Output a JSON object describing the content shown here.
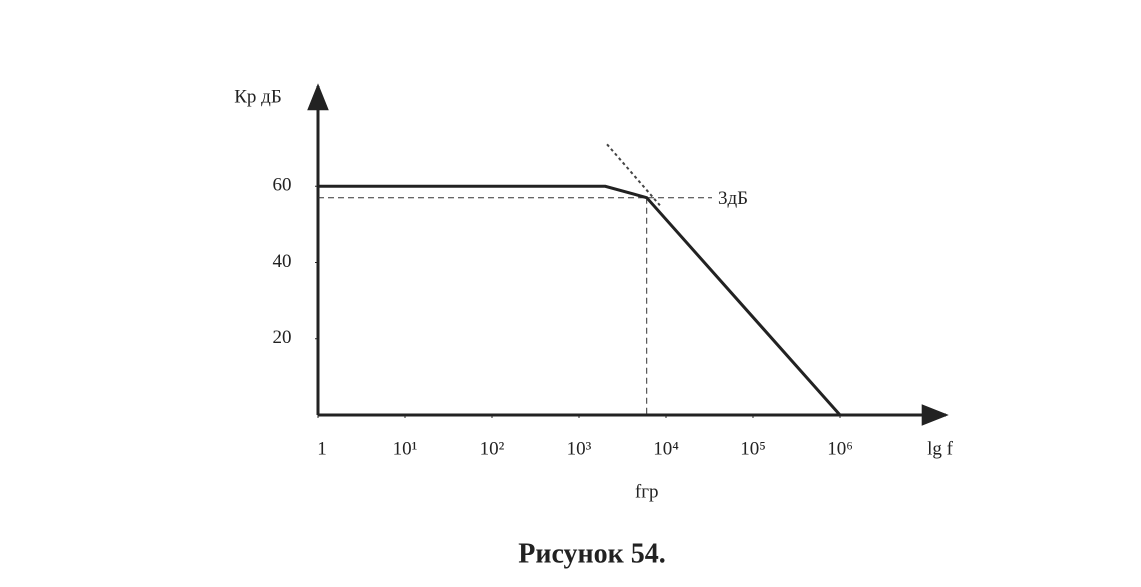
{
  "chart_data": {
    "type": "line",
    "caption": "Рисунок 54.",
    "y_label": "Кр дБ",
    "x_label": "lg f",
    "log_x": true,
    "xlim": [
      1,
      10000000
    ],
    "ylim": [
      0,
      80
    ],
    "xticks": [
      1,
      {
        "value": 10,
        "label": "10¹"
      },
      {
        "value": 100,
        "label": "10²"
      },
      {
        "value": 1000,
        "label": "10³"
      },
      {
        "value": 10000,
        "label": "10⁴"
      },
      {
        "value": 100000,
        "label": "10⁵"
      },
      {
        "value": 1000000,
        "label": "10⁶"
      }
    ],
    "yticks": [
      20,
      40,
      60
    ],
    "series": [
      {
        "color": "#222222",
        "dash": "solid",
        "x": [
          1,
          2000,
          6000,
          1000000
        ],
        "values": [
          60,
          60,
          57,
          0
        ]
      },
      {
        "color": "#444444",
        "dash": "dotted",
        "x": [
          2100,
          8500
        ],
        "values": [
          71,
          55
        ]
      }
    ],
    "cutoff": {
      "x": 6000,
      "y": 57,
      "level_label": "3дБ",
      "freq_label": "fгр"
    }
  }
}
